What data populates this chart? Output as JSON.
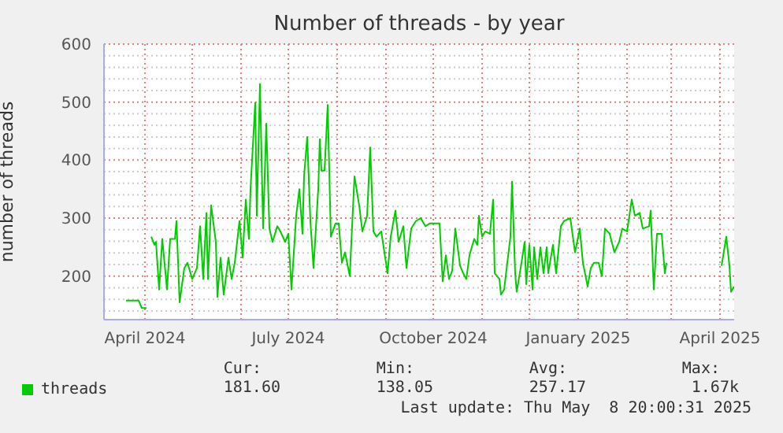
{
  "chart_data": {
    "type": "line",
    "title": "Number of threads - by year",
    "ylabel": "number of threads",
    "xlim": [
      "2024-03-06",
      "2025-04-10"
    ],
    "ylim": [
      125,
      600
    ],
    "yticks": [
      {
        "value": 140,
        "label": null
      },
      {
        "value": 160,
        "label": null
      },
      {
        "value": 180,
        "label": null
      },
      200,
      {
        "value": 220,
        "label": null
      },
      {
        "value": 240,
        "label": null
      },
      {
        "value": 260,
        "label": null
      },
      {
        "value": 280,
        "label": null
      },
      300,
      {
        "value": 320,
        "label": null
      },
      {
        "value": 340,
        "label": null
      },
      {
        "value": 360,
        "label": null
      },
      {
        "value": 380,
        "label": null
      },
      400,
      {
        "value": 420,
        "label": null
      },
      {
        "value": 440,
        "label": null
      },
      {
        "value": 460,
        "label": null
      },
      {
        "value": 480,
        "label": null
      },
      500,
      {
        "value": 520,
        "label": null
      },
      {
        "value": 540,
        "label": null
      },
      {
        "value": 560,
        "label": null
      },
      {
        "value": 580,
        "label": null
      },
      600
    ],
    "xticks": [
      {
        "value": "2024-04-01",
        "label": "April 2024"
      },
      {
        "value": "2024-05-01",
        "label": null
      },
      {
        "value": "2024-06-01",
        "label": null
      },
      {
        "value": "2024-07-01",
        "label": "July 2024"
      },
      {
        "value": "2024-08-01",
        "label": null
      },
      {
        "value": "2024-09-01",
        "label": null
      },
      {
        "value": "2024-10-01",
        "label": "October 2024"
      },
      {
        "value": "2024-11-01",
        "label": null
      },
      {
        "value": "2024-12-01",
        "label": null
      },
      {
        "value": "2025-01-01",
        "label": "January 2025"
      },
      {
        "value": "2025-02-01",
        "label": null
      },
      {
        "value": "2025-03-01",
        "label": null
      },
      {
        "value": "2025-04-01",
        "label": "April 2025"
      }
    ],
    "grid": true,
    "legend": "bottom",
    "marker": "none",
    "line_style": "solid",
    "annotations": [
      "Cur:",
      "181.60",
      "Min:",
      "138.05",
      "Avg:",
      "257.17",
      "Max:",
      "1.67k",
      "Last update: Thu May  8 20:00:31 2025"
    ],
    "x": [
      "2024-03-20",
      "2024-03-28",
      "2024-03-30",
      "2024-04-02",
      "2024-04-03",
      "2024-04-05",
      "2024-04-07",
      "2024-04-08",
      "2024-04-10",
      "2024-04-12",
      "2024-04-15",
      "2024-04-17",
      "2024-04-20",
      "2024-04-21",
      "2024-04-23",
      "2024-04-26",
      "2024-04-28",
      "2024-05-01",
      "2024-05-04",
      "2024-05-06",
      "2024-05-08",
      "2024-05-10",
      "2024-05-11",
      "2024-05-13",
      "2024-05-16",
      "2024-05-17",
      "2024-05-19",
      "2024-05-21",
      "2024-05-24",
      "2024-05-26",
      "2024-05-28",
      "2024-05-31",
      "2024-06-02",
      "2024-06-04",
      "2024-06-06",
      "2024-06-07",
      "2024-06-10",
      "2024-06-11",
      "2024-06-13",
      "2024-06-15",
      "2024-06-17",
      "2024-06-19",
      "2024-06-21",
      "2024-06-24",
      "2024-06-26",
      "2024-06-29",
      "2024-07-01",
      "2024-07-03",
      "2024-07-06",
      "2024-07-08",
      "2024-07-10",
      "2024-07-11",
      "2024-07-13",
      "2024-07-15",
      "2024-07-17",
      "2024-07-20",
      "2024-07-21",
      "2024-07-22",
      "2024-07-24",
      "2024-07-26",
      "2024-07-28",
      "2024-07-31",
      "2024-08-02",
      "2024-08-04",
      "2024-08-06",
      "2024-08-09",
      "2024-08-12",
      "2024-08-15",
      "2024-08-17",
      "2024-08-20",
      "2024-08-22",
      "2024-08-24",
      "2024-08-26",
      "2024-08-29",
      "2024-09-02",
      "2024-09-04",
      "2024-09-07",
      "2024-09-09",
      "2024-09-12",
      "2024-09-14",
      "2024-09-17",
      "2024-09-20",
      "2024-09-23",
      "2024-09-26",
      "2024-09-29",
      "2024-10-03",
      "2024-10-05",
      "2024-10-07",
      "2024-10-09",
      "2024-10-11",
      "2024-10-13",
      "2024-10-15",
      "2024-10-18",
      "2024-10-20",
      "2024-10-22",
      "2024-10-24",
      "2024-10-27",
      "2024-10-29",
      "2024-10-30",
      "2024-11-01",
      "2024-11-03",
      "2024-11-06",
      "2024-11-08",
      "2024-11-09",
      "2024-11-12",
      "2024-11-13",
      "2024-11-15",
      "2024-11-17",
      "2024-11-19",
      "2024-11-20",
      "2024-11-22",
      "2024-11-23",
      "2024-11-26",
      "2024-11-28",
      "2024-11-29",
      "2024-12-01",
      "2024-12-03",
      "2024-12-04",
      "2024-12-06",
      "2024-12-08",
      "2024-12-10",
      "2024-12-12",
      "2024-12-13",
      "2024-12-16",
      "2024-12-18",
      "2024-12-21",
      "2024-12-23",
      "2024-12-27",
      "2024-12-30",
      "2025-01-02",
      "2025-01-04",
      "2025-01-07",
      "2025-01-09",
      "2025-01-11",
      "2025-01-14",
      "2025-01-16",
      "2025-01-18",
      "2025-01-21",
      "2025-01-24",
      "2025-01-27",
      "2025-01-29",
      "2025-02-01",
      "2025-02-04",
      "2025-02-06",
      "2025-02-09",
      "2025-02-11",
      "2025-02-15",
      "2025-02-16",
      "2025-02-18",
      "2025-02-20",
      "2025-02-23",
      "2025-02-25",
      "2025-02-26",
      "2025-03-01",
      "2025-04-02",
      "2025-04-05",
      "2025-04-07",
      "2025-04-08",
      "2025-04-10"
    ],
    "series": [
      {
        "name": "threads",
        "color": "#00cc00",
        "values": [
          158,
          158,
          145,
          145,
          null,
          268,
          254,
          259,
          177,
          264,
          177,
          264,
          264,
          295,
          155,
          214,
          223,
          195,
          214,
          286,
          195,
          309,
          195,
          322,
          259,
          164,
          232,
          168,
          232,
          195,
          223,
          295,
          232,
          332,
          264,
          350,
          499,
          304,
          531,
          282,
          463,
          282,
          259,
          286,
          277,
          259,
          273,
          177,
          304,
          350,
          273,
          372,
          440,
          295,
          214,
          350,
          436,
          382,
          382,
          495,
          268,
          291,
          291,
          223,
          241,
          200,
          372,
          322,
          277,
          304,
          422,
          277,
          268,
          277,
          205,
          268,
          313,
          259,
          286,
          214,
          282,
          295,
          300,
          286,
          291,
          291,
          291,
          191,
          236,
          195,
          209,
          282,
          218,
          205,
          195,
          236,
          264,
          254,
          304,
          268,
          277,
          273,
          332,
          205,
          195,
          168,
          177,
          223,
          268,
          363,
          205,
          173,
          223,
          259,
          186,
          254,
          177,
          250,
          195,
          250,
          205,
          250,
          205,
          254,
          205,
          286,
          295,
          300,
          241,
          282,
          223,
          182,
          214,
          223,
          223,
          200,
          282,
          273,
          241,
          259,
          282,
          277,
          332,
          304,
          309,
          282,
          286,
          313,
          177,
          273,
          273,
          205,
          223,
          null,
          218,
          268,
          218,
          173,
          182
        ]
      }
    ]
  }
}
